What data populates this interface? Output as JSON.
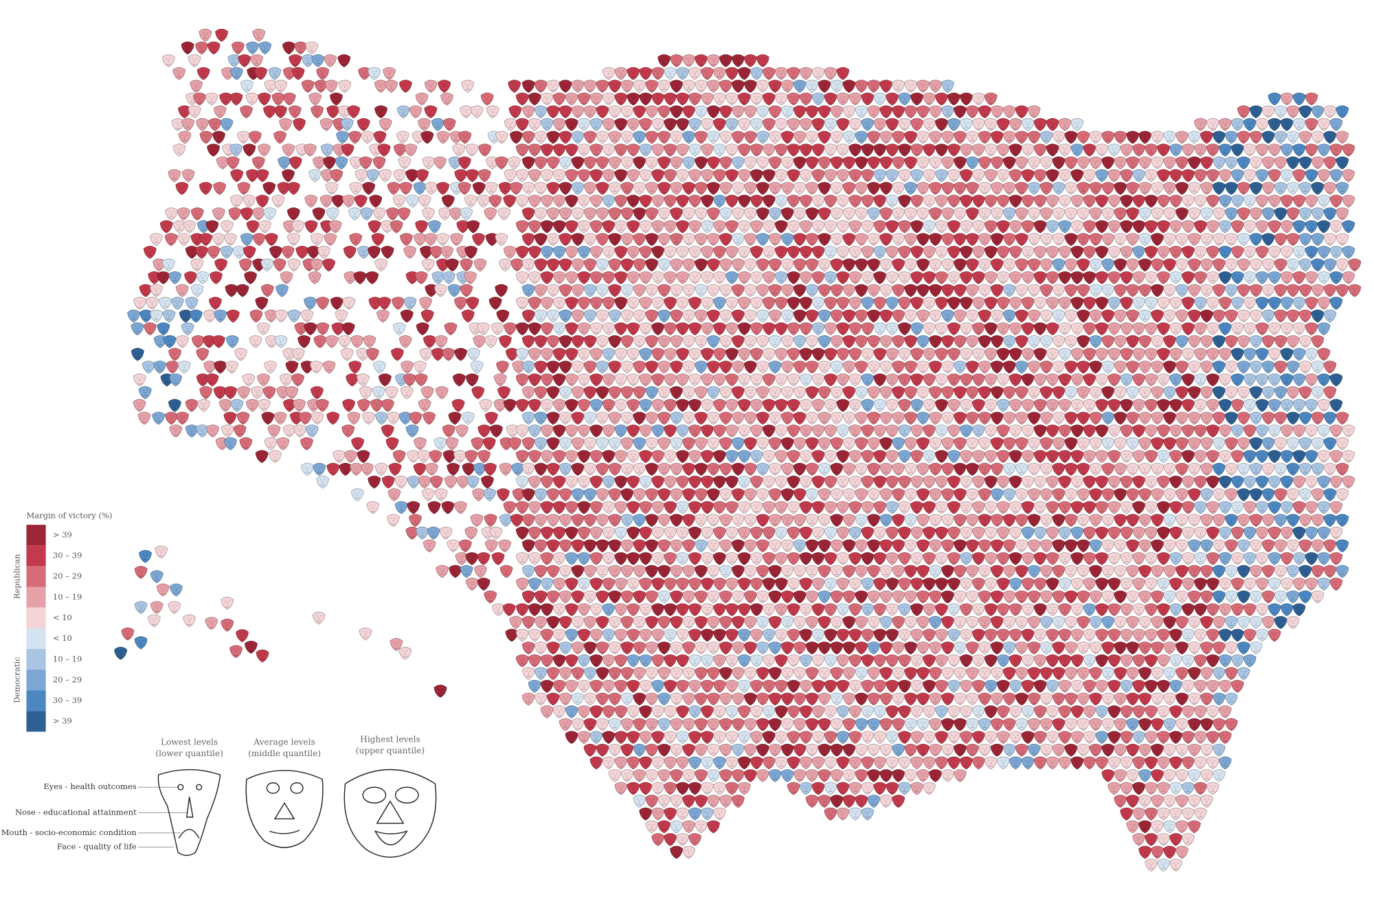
{
  "legend": {
    "title": "Margin of victory (%)",
    "groups": [
      {
        "label": "Republican",
        "bins": [
          {
            "label": "> 39",
            "color": "#9c2536"
          },
          {
            "label": "30 – 39",
            "color": "#c33a4c"
          },
          {
            "label": "20 – 29",
            "color": "#d76b77"
          },
          {
            "label": "10 – 19",
            "color": "#e6a1a8"
          },
          {
            "label": "< 10",
            "color": "#f3d4d7"
          }
        ]
      },
      {
        "label": "Democratic",
        "bins": [
          {
            "label": "< 10",
            "color": "#d5e3f1"
          },
          {
            "label": "10 – 19",
            "color": "#a9c5e3"
          },
          {
            "label": "20 – 29",
            "color": "#7ca7d4"
          },
          {
            "label": "30 – 39",
            "color": "#4c87c2"
          },
          {
            "label": "> 39",
            "color": "#2e6094"
          }
        ]
      }
    ]
  },
  "face_legend": {
    "columns": [
      [
        "Lowest levels",
        "(lower quantile)"
      ],
      [
        "Average levels",
        "(middle quantile)"
      ],
      [
        "Highest levels",
        "(upper quantile)"
      ]
    ],
    "features": [
      "Eyes - health outcomes",
      "Nose - educational attainment",
      "Mouth - socio-economic condition",
      "Face - quality of life"
    ]
  }
}
